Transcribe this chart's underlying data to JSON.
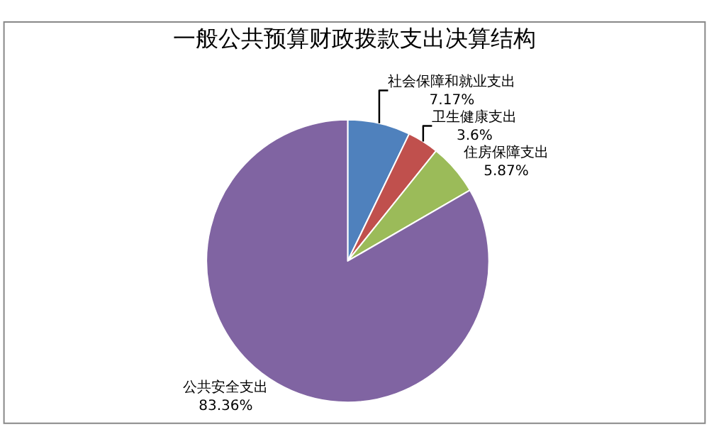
{
  "chart_data": {
    "type": "pie",
    "title": "一般公共预算财政拨款支出决算结构",
    "categories": [
      "社会保障和就业支出",
      "卫生健康支出",
      "住房保障支出",
      "公共安全支出"
    ],
    "values": [
      7.17,
      3.6,
      5.87,
      83.36
    ],
    "colors": [
      "#4f81bd",
      "#c0504d",
      "#9bbb59",
      "#8064a2"
    ],
    "value_labels": [
      "7.17%",
      "3.6%",
      "5.87%",
      "83.36%"
    ],
    "legend": false
  }
}
